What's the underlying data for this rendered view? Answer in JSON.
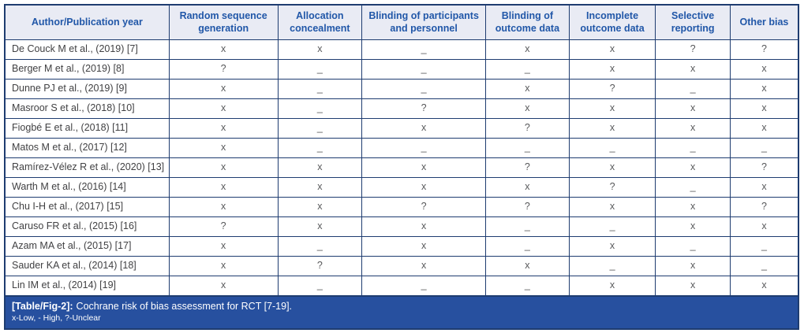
{
  "colors": {
    "border": "#1e3c70",
    "header_bg": "#e9ebf4",
    "header_text": "#2157a8",
    "mark_text": "#58595b",
    "author_text": "#414143",
    "caption_bg": "#27509f",
    "caption_text": "#ffffff"
  },
  "table": {
    "column_widths_pct": [
      20.7,
      13.7,
      10.6,
      15.6,
      10.5,
      10.9,
      9.4,
      8.6
    ],
    "columns": [
      "Author/Publication year",
      "Random sequence generation",
      "Allocation concealment",
      "Blinding of participants and personnel",
      "Blinding of outcome data",
      "Incomplete outcome data",
      "Selective reporting",
      "Other bias"
    ],
    "rows": [
      {
        "author": "De Couck M et al., (2019) [7]",
        "marks": [
          "x",
          "x",
          "_",
          "x",
          "x",
          "?",
          "?"
        ]
      },
      {
        "author": "Berger M et al., (2019) [8]",
        "marks": [
          "?",
          "_",
          "_",
          "_",
          "x",
          "x",
          "x"
        ]
      },
      {
        "author": "Dunne PJ et al., (2019) [9]",
        "marks": [
          "x",
          "_",
          "_",
          "x",
          "?",
          "_",
          "x"
        ]
      },
      {
        "author": "Masroor S et al., (2018) [10]",
        "marks": [
          "x",
          "_",
          "?",
          "x",
          "x",
          "x",
          "x"
        ]
      },
      {
        "author": "Fiogbé E et al., (2018) [11]",
        "marks": [
          "x",
          "_",
          "x",
          "?",
          "x",
          "x",
          "x"
        ]
      },
      {
        "author": "Matos M et al., (2017) [12]",
        "marks": [
          "x",
          "_",
          "_",
          "_",
          "_",
          "_",
          "_"
        ]
      },
      {
        "author": "Ramírez-Vélez R et al., (2020) [13]",
        "marks": [
          "x",
          "x",
          "x",
          "?",
          "x",
          "x",
          "?"
        ]
      },
      {
        "author": "Warth M et al., (2016) [14]",
        "marks": [
          "x",
          "x",
          "x",
          "x",
          "?",
          "_",
          "x"
        ]
      },
      {
        "author": "Chu I-H et al., (2017) [15]",
        "marks": [
          "x",
          "x",
          "?",
          "?",
          "x",
          "x",
          "?"
        ]
      },
      {
        "author": "Caruso FR et al., (2015) [16]",
        "marks": [
          "?",
          "x",
          "x",
          "_",
          "_",
          "x",
          "x"
        ]
      },
      {
        "author": "Azam MA et al., (2015) [17]",
        "marks": [
          "x",
          "_",
          "x",
          "_",
          "x",
          "_",
          "_"
        ]
      },
      {
        "author": "Sauder KA et al., (2014) [18]",
        "marks": [
          "x",
          "?",
          "x",
          "x",
          "_",
          "x",
          "_"
        ]
      },
      {
        "author": "Lin IM et al., (2014) [19]",
        "marks": [
          "x",
          "_",
          "_",
          "_",
          "x",
          "x",
          "x"
        ]
      }
    ]
  },
  "caption": {
    "label": "[Table/Fig-2]:",
    "text": "Cochrane risk of bias assessment for RCT [7-19].",
    "legend": "x-Low, - High, ?-Unclear"
  }
}
